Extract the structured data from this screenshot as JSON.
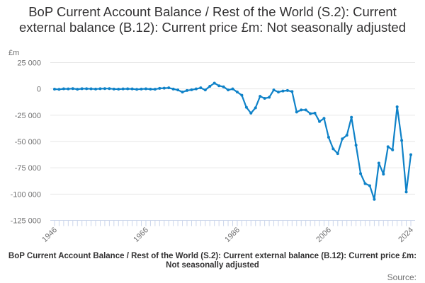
{
  "chart_data": {
    "type": "line",
    "title": "BoP Current Account Balance / Rest of the World (S.2): Current external balance (B.12): Current price £m: Not seasonally adjusted",
    "xlabel": "BoP Current Account Balance / Rest of the World (S.2): Current external balance (B.12): Current price £m: Not seasonally adjusted",
    "ylabel": "£m",
    "source_label": "Source:",
    "ylim": [
      -125000,
      25000
    ],
    "xlim": [
      1946,
      2024
    ],
    "y_ticks": [
      25000,
      0,
      -25000,
      -50000,
      -75000,
      -100000,
      -125000
    ],
    "y_tick_labels": [
      "25 000",
      "0",
      "-25 000",
      "-50 000",
      "-75 000",
      "-100 000",
      "-125 000"
    ],
    "x_ticks": [
      "1946",
      "1966",
      "1986",
      "2006",
      "2024"
    ],
    "grid": true,
    "line_color": "#0f82c8",
    "series": [
      {
        "x": [
          1946,
          1947,
          1948,
          1949,
          1950,
          1951,
          1952,
          1953,
          1954,
          1955,
          1956,
          1957,
          1958,
          1959,
          1960,
          1961,
          1962,
          1963,
          1964,
          1965,
          1966,
          1967,
          1968,
          1969,
          1970,
          1971,
          1972,
          1973,
          1974,
          1975,
          1976,
          1977,
          1978,
          1979,
          1980,
          1981,
          1982,
          1983,
          1984,
          1985,
          1986,
          1987,
          1988,
          1989,
          1990,
          1991,
          1992,
          1993,
          1994,
          1995,
          1996,
          1997,
          1998,
          1999,
          2000,
          2001,
          2002,
          2003,
          2004,
          2005,
          2006,
          2007,
          2008,
          2009,
          2010,
          2011,
          2012,
          2013,
          2014,
          2015,
          2016,
          2017,
          2018,
          2019,
          2020,
          2021,
          2022,
          2023,
          2024
        ],
        "values": [
          -200,
          -400,
          100,
          0,
          300,
          -300,
          200,
          200,
          100,
          -100,
          200,
          300,
          300,
          -100,
          -200,
          0,
          100,
          0,
          -400,
          -100,
          100,
          -200,
          -300,
          500,
          700,
          1000,
          -100,
          -1000,
          -3000,
          -1500,
          -800,
          0,
          1000,
          -1000,
          2500,
          5500,
          3000,
          2000,
          -1000,
          0,
          -3000,
          -6000,
          -17500,
          -23000,
          -18000,
          -7000,
          -9000,
          -8000,
          -1000,
          -3000,
          -2000,
          -1500,
          -2500,
          -22000,
          -20000,
          -20000,
          -23500,
          -23000,
          -31000,
          -28000,
          -46000,
          -57000,
          -61500,
          -47500,
          -44000,
          -27000,
          -53500,
          -80500,
          -90000,
          -92000,
          -105000,
          -70500,
          -81000,
          -55000,
          -58000,
          -17000,
          -49000,
          -98000,
          -62500
        ]
      }
    ]
  }
}
